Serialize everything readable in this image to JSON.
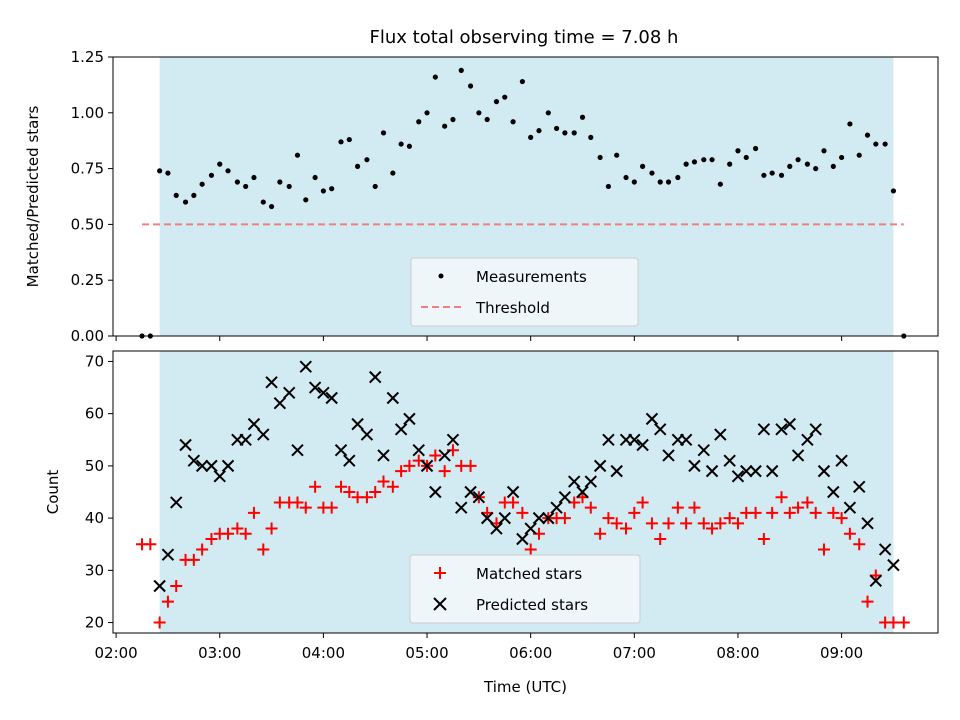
{
  "chart_data": [
    {
      "type": "scatter",
      "title": "Flux total observing time = 7.08 h",
      "ylabel": "Matched/Predicted stars",
      "xlabel": "",
      "ylim": [
        0,
        1.25
      ],
      "xlim_hours": [
        1.97,
        9.93
      ],
      "y_ticks": [
        "0.00",
        "0.25",
        "0.50",
        "0.75",
        "1.00",
        "1.25"
      ],
      "y_tick_values": [
        0,
        0.25,
        0.5,
        0.75,
        1.0,
        1.25
      ],
      "shaded_span_hours": [
        2.42,
        9.5
      ],
      "threshold": {
        "name": "Threshold",
        "value": 0.5,
        "x_hours": [
          2.25,
          9.6
        ],
        "color": "#f08080"
      },
      "series": [
        {
          "name": "Measurements",
          "color": "#000000",
          "x_hours": [
            2.25,
            2.33,
            2.42,
            2.5,
            2.58,
            2.67,
            2.75,
            2.83,
            2.92,
            3.0,
            3.08,
            3.17,
            3.25,
            3.33,
            3.42,
            3.5,
            3.58,
            3.67,
            3.75,
            3.83,
            3.92,
            4.0,
            4.08,
            4.17,
            4.25,
            4.33,
            4.42,
            4.5,
            4.58,
            4.67,
            4.75,
            4.83,
            4.92,
            5.0,
            5.08,
            5.17,
            5.25,
            5.33,
            5.42,
            5.5,
            5.58,
            5.67,
            5.75,
            5.83,
            5.92,
            6.0,
            6.08,
            6.17,
            6.25,
            6.33,
            6.42,
            6.5,
            6.58,
            6.67,
            6.75,
            6.83,
            6.92,
            7.0,
            7.08,
            7.17,
            7.25,
            7.33,
            7.42,
            7.5,
            7.58,
            7.67,
            7.75,
            7.83,
            7.92,
            8.0,
            8.08,
            8.17,
            8.25,
            8.33,
            8.42,
            8.5,
            8.58,
            8.67,
            8.75,
            8.83,
            8.92,
            9.0,
            9.08,
            9.17,
            9.25,
            9.33,
            9.42,
            9.5,
            9.6
          ],
          "y": [
            0,
            0,
            0.74,
            0.73,
            0.63,
            0.6,
            0.63,
            0.68,
            0.72,
            0.77,
            0.74,
            0.69,
            0.67,
            0.71,
            0.6,
            0.58,
            0.69,
            0.67,
            0.81,
            0.61,
            0.71,
            0.65,
            0.66,
            0.87,
            0.88,
            0.76,
            0.79,
            0.67,
            0.91,
            0.73,
            0.86,
            0.85,
            0.96,
            1.0,
            1.16,
            0.94,
            0.97,
            1.19,
            1.12,
            1.0,
            0.97,
            1.05,
            1.07,
            0.96,
            1.14,
            0.89,
            0.92,
            1.0,
            0.93,
            0.91,
            0.91,
            0.98,
            0.89,
            0.8,
            0.67,
            0.81,
            0.71,
            0.69,
            0.76,
            0.73,
            0.69,
            0.69,
            0.71,
            0.77,
            0.78,
            0.79,
            0.79,
            0.68,
            0.77,
            0.83,
            0.8,
            0.84,
            0.72,
            0.73,
            0.72,
            0.76,
            0.79,
            0.77,
            0.75,
            0.83,
            0.76,
            0.8,
            0.95,
            0.81,
            0.9,
            0.86,
            0.86,
            0.65,
            0
          ]
        }
      ],
      "legend": {
        "placement": "lower-center",
        "entries": [
          "Measurements",
          "Threshold"
        ]
      }
    },
    {
      "type": "scatter",
      "title": "",
      "ylabel": "Count",
      "xlabel": "Time (UTC)",
      "ylim": [
        18,
        72
      ],
      "xlim_hours": [
        1.97,
        9.93
      ],
      "y_ticks": [
        "20",
        "30",
        "40",
        "50",
        "60",
        "70"
      ],
      "y_tick_values": [
        20,
        30,
        40,
        50,
        60,
        70
      ],
      "x_ticks": [
        "02:00",
        "03:00",
        "04:00",
        "05:00",
        "06:00",
        "07:00",
        "08:00",
        "09:00"
      ],
      "x_tick_values_hours": [
        2,
        3,
        4,
        5,
        6,
        7,
        8,
        9
      ],
      "shaded_span_hours": [
        2.42,
        9.5
      ],
      "series": [
        {
          "name": "Matched stars",
          "marker": "plus",
          "color": "#ff0000",
          "x_hours": [
            2.25,
            2.33,
            2.42,
            2.5,
            2.58,
            2.67,
            2.75,
            2.83,
            2.92,
            3.0,
            3.08,
            3.17,
            3.25,
            3.33,
            3.42,
            3.5,
            3.58,
            3.67,
            3.75,
            3.83,
            3.92,
            4.0,
            4.08,
            4.17,
            4.25,
            4.33,
            4.42,
            4.5,
            4.58,
            4.67,
            4.75,
            4.83,
            4.92,
            5.0,
            5.08,
            5.17,
            5.25,
            5.33,
            5.42,
            5.5,
            5.58,
            5.67,
            5.75,
            5.83,
            5.92,
            6.0,
            6.08,
            6.17,
            6.25,
            6.33,
            6.42,
            6.5,
            6.58,
            6.67,
            6.75,
            6.83,
            6.92,
            7.0,
            7.08,
            7.17,
            7.25,
            7.33,
            7.42,
            7.5,
            7.58,
            7.67,
            7.75,
            7.83,
            7.92,
            8.0,
            8.08,
            8.17,
            8.25,
            8.33,
            8.42,
            8.5,
            8.58,
            8.67,
            8.75,
            8.83,
            8.92,
            9.0,
            9.08,
            9.17,
            9.25,
            9.33,
            9.42,
            9.5,
            9.6
          ],
          "y": [
            35,
            35,
            20,
            24,
            27,
            32,
            32,
            34,
            36,
            37,
            37,
            38,
            37,
            41,
            34,
            38,
            43,
            43,
            43,
            42,
            46,
            42,
            42,
            46,
            45,
            44,
            44,
            45,
            47,
            46,
            49,
            50,
            51,
            50,
            52,
            49,
            53,
            50,
            50,
            44,
            41,
            39,
            43,
            43,
            41,
            34,
            37,
            40,
            40,
            40,
            43,
            44,
            42,
            37,
            40,
            39,
            38,
            41,
            43,
            39,
            36,
            39,
            42,
            39,
            42,
            39,
            38,
            39,
            40,
            39,
            41,
            41,
            36,
            41,
            44,
            41,
            42,
            43,
            41,
            34,
            41,
            40,
            37,
            35,
            24,
            29,
            20,
            20,
            20
          ]
        },
        {
          "name": "Predicted stars",
          "marker": "x",
          "color": "#000000",
          "x_hours": [
            2.42,
            2.5,
            2.58,
            2.67,
            2.75,
            2.83,
            2.92,
            3.0,
            3.08,
            3.17,
            3.25,
            3.33,
            3.42,
            3.5,
            3.58,
            3.67,
            3.75,
            3.83,
            3.92,
            4.0,
            4.08,
            4.17,
            4.25,
            4.33,
            4.42,
            4.5,
            4.58,
            4.67,
            4.75,
            4.83,
            4.92,
            5.0,
            5.08,
            5.17,
            5.25,
            5.33,
            5.42,
            5.5,
            5.58,
            5.67,
            5.75,
            5.83,
            5.92,
            6.0,
            6.08,
            6.17,
            6.25,
            6.33,
            6.42,
            6.5,
            6.58,
            6.67,
            6.75,
            6.83,
            6.92,
            7.0,
            7.08,
            7.17,
            7.25,
            7.33,
            7.42,
            7.5,
            7.58,
            7.67,
            7.75,
            7.83,
            7.92,
            8.0,
            8.08,
            8.17,
            8.25,
            8.33,
            8.42,
            8.5,
            8.58,
            8.67,
            8.75,
            8.83,
            8.92,
            9.0,
            9.08,
            9.17,
            9.25,
            9.33,
            9.42,
            9.5
          ],
          "y": [
            27,
            33,
            43,
            54,
            51,
            50,
            50,
            48,
            50,
            55,
            55,
            58,
            56,
            66,
            62,
            64,
            53,
            69,
            65,
            64,
            63,
            53,
            51,
            58,
            56,
            67,
            52,
            63,
            57,
            59,
            53,
            50,
            45,
            52,
            55,
            42,
            45,
            44,
            40,
            38,
            40,
            45,
            36,
            38,
            40,
            40,
            42,
            44,
            47,
            45,
            47,
            50,
            55,
            49,
            55,
            55,
            54,
            59,
            57,
            52,
            55,
            55,
            50,
            53,
            49,
            56,
            51,
            48,
            49,
            49,
            57,
            49,
            57,
            58,
            52,
            55,
            57,
            49,
            45,
            51,
            42,
            46,
            39,
            28,
            34,
            31
          ]
        }
      ],
      "legend": {
        "placement": "lower-center",
        "entries": [
          "Matched stars",
          "Predicted stars"
        ]
      }
    }
  ],
  "style": {
    "span_color": "#add8e6",
    "legend_bg": "#f5f9fc"
  }
}
